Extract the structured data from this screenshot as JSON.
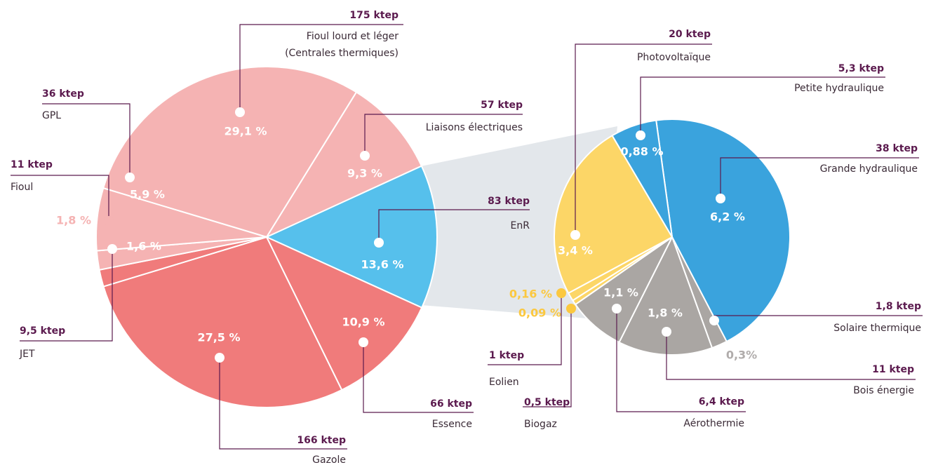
{
  "chart_data": [
    {
      "type": "pie",
      "categories": [
        "Fioul lourd et léger\n(Centrales thermiques)",
        "Liaisons électriques",
        "EnR",
        "Essence",
        "Gazole",
        "JET",
        "Fioul",
        "GPL"
      ],
      "values": [
        29.1,
        9.3,
        13.6,
        10.9,
        27.5,
        1.6,
        1.8,
        5.9
      ],
      "value_labels": [
        "29,1 %",
        "9,3 %",
        "13,6 %",
        "10,9 %",
        "27,5 %",
        "1,6 %",
        "1,8 %",
        "5,9 %"
      ],
      "amount_labels": [
        "175 ktep",
        "57 ktep",
        "83 ktep",
        "66 ktep",
        "166 ktep",
        "9,5 ktep",
        "11 ktep",
        "36 ktep"
      ],
      "colors": [
        "#f5b3b3",
        "#f5b3b3",
        "#56c0ec",
        "#f07b7b",
        "#f07b7b",
        "#f07b7b",
        "#f5b3b3",
        "#f5b3b3"
      ]
    },
    {
      "type": "pie",
      "categories": [
        "Grande hydraulique",
        "Solaire thermique",
        "Bois énergie",
        "Aérothermie",
        "Biogaz",
        "Eolien",
        "Photovoltaïque",
        "Petite hydraulique"
      ],
      "values": [
        6.2,
        0.3,
        1.8,
        1.1,
        0.09,
        0.16,
        3.4,
        0.88
      ],
      "value_labels": [
        "6,2 %",
        "0,3%",
        "1,8 %",
        "1,1 %",
        "0,09 %",
        "0,16 %",
        "3,4 %",
        "0,88 %"
      ],
      "amount_labels": [
        "38 ktep",
        "1,8 ktep",
        "11 ktep",
        "6,4 ktep",
        "0,5 ktep",
        "1 ktep",
        "20 ktep",
        "5,3 ktep"
      ],
      "colors": [
        "#3aa3dd",
        "#aaa6a3",
        "#aaa6a3",
        "#aaa6a3",
        "#fcd667",
        "#fcd667",
        "#fcd667",
        "#3aa3dd"
      ]
    }
  ]
}
